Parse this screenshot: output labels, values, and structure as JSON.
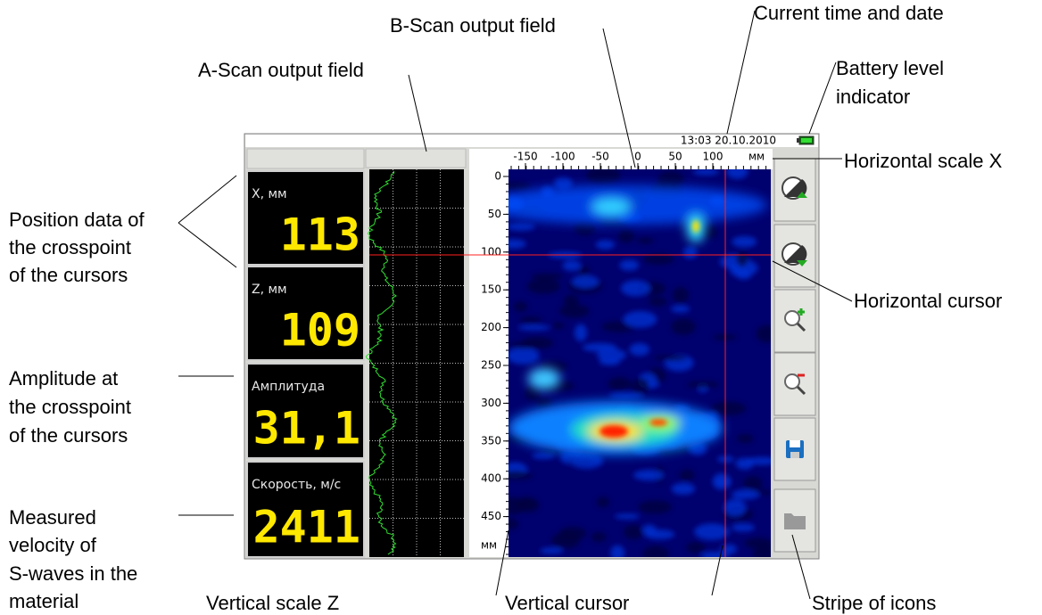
{
  "annotations": {
    "b_scan": [
      "B-Scan output field"
    ],
    "time_date": [
      "Current time and date"
    ],
    "battery": [
      "Battery level",
      "indicator"
    ],
    "a_scan": [
      "A-Scan output field"
    ],
    "x_scale": [
      "Horizontal scale X"
    ],
    "position": [
      "Position data of",
      "the crosspoint",
      "of the cursors"
    ],
    "h_cursor": [
      "Horizontal cursor"
    ],
    "amplitude": [
      "Amplitude at",
      "the crosspoint",
      "of the cursors"
    ],
    "velocity": [
      "Measured",
      "velocity of",
      "S-waves in the",
      "material"
    ],
    "z_scale": [
      "Vertical scale Z"
    ],
    "v_cursor": [
      "Vertical cursor"
    ],
    "icons": [
      "Stripe of icons"
    ]
  },
  "device": {
    "datetime": "13:03 20.10.2010",
    "readouts": [
      {
        "label": "X, мм",
        "value": 113
      },
      {
        "label": "Z, мм",
        "value": 109
      },
      {
        "label": "Амплитуда",
        "value": "31,1"
      },
      {
        "label": "Скорость, м/с",
        "value": 2411
      }
    ],
    "x_scale": {
      "ticks": [
        -150,
        -100,
        -50,
        0,
        50,
        100
      ],
      "unit": "мм"
    },
    "z_scale": {
      "ticks": [
        0,
        50,
        100,
        150,
        200,
        250,
        300,
        350,
        400,
        450
      ],
      "unit": "мм"
    }
  }
}
